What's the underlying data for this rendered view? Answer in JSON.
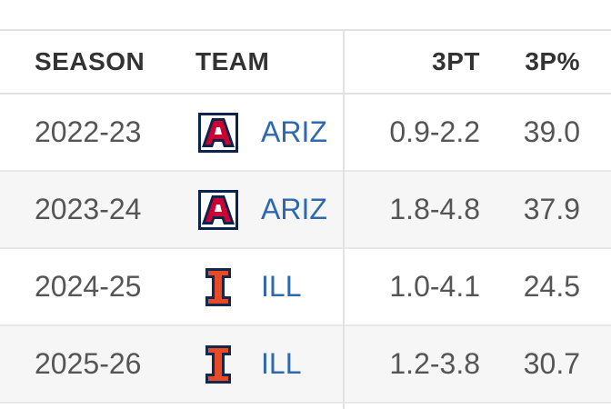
{
  "table": {
    "headers": [
      "SEASON",
      "TEAM",
      "3PT",
      "3P%"
    ],
    "rows": [
      [
        "2022-23",
        "ARIZ",
        "0.9-2.2",
        "39.0"
      ],
      [
        "2023-24",
        "ARIZ",
        "1.8-4.8",
        "37.9"
      ],
      [
        "2024-25",
        "ILL",
        "1.0-4.1",
        "24.5"
      ],
      [
        "2025-26",
        "ILL",
        "1.2-3.8",
        "30.7"
      ]
    ]
  }
}
